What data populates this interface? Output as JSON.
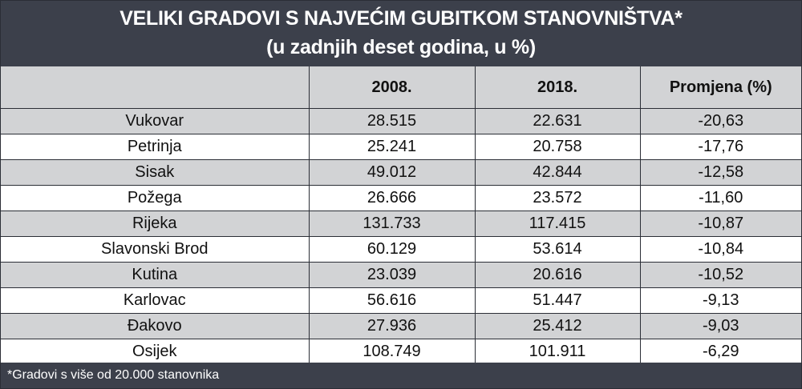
{
  "title": "VELIKI GRADOVI S NAJVEĆIM GUBITKOM STANOVNIŠTVA*",
  "subtitle": "(u zadnjih deset godina, u %)",
  "footnote": "*Gradovi s više od 20.000 stanovnika",
  "colors": {
    "header_bg": "#3c404b",
    "stripe": "#d2d3d5",
    "text": "#111111"
  },
  "chart_data": {
    "type": "table",
    "columns": [
      "",
      "2008.",
      "2018.",
      "Promjena (%)"
    ],
    "rows": [
      [
        "Vukovar",
        "28.515",
        "22.631",
        "-20,63"
      ],
      [
        "Petrinja",
        "25.241",
        "20.758",
        "-17,76"
      ],
      [
        "Sisak",
        "49.012",
        "42.844",
        "-12,58"
      ],
      [
        "Požega",
        "26.666",
        "23.572",
        "-11,60"
      ],
      [
        "Rijeka",
        "131.733",
        "117.415",
        "-10,87"
      ],
      [
        "Slavonski Brod",
        "60.129",
        "53.614",
        "-10,84"
      ],
      [
        "Kutina",
        "23.039",
        "20.616",
        "-10,52"
      ],
      [
        "Karlovac",
        "56.616",
        "51.447",
        "-9,13"
      ],
      [
        "Đakovo",
        "27.936",
        "25.412",
        "-9,03"
      ],
      [
        "Osijek",
        "108.749",
        "101.911",
        "-6,29"
      ]
    ]
  }
}
